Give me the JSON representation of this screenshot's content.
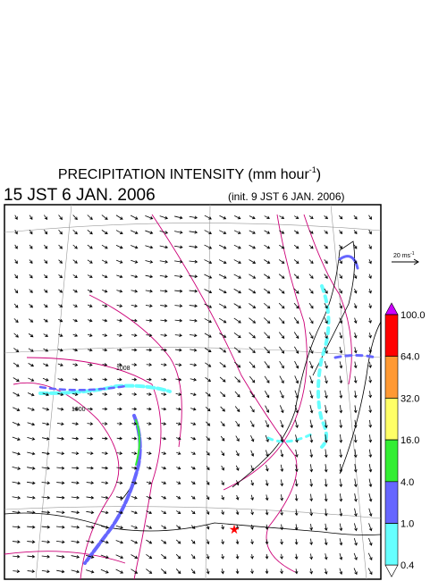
{
  "title": {
    "text": "PRECIPITATION INTENSITY (mm hour",
    "superscript": "-1",
    "close": ")"
  },
  "valid_time": "15 JST 6 JAN. 2006",
  "init_time": "(init. 9 JST 6 JAN. 2006)",
  "vector_scale": {
    "text": "20 ms",
    "superscript": "-1"
  },
  "colorbar": {
    "levels": [
      {
        "value": 100,
        "label": "100.0"
      },
      {
        "value": 64,
        "label": "64.0"
      },
      {
        "value": 32,
        "label": "32.0"
      },
      {
        "value": 16,
        "label": "16.0"
      },
      {
        "value": 4,
        "label": "4.0"
      },
      {
        "value": 1,
        "label": "1.0"
      },
      {
        "value": 0.4,
        "label": "0.4"
      }
    ],
    "colors": [
      "#ff0000",
      "#ff9933",
      "#ffff66",
      "#33ee33",
      "#6666ff",
      "#66ffff"
    ],
    "over_color": "#cc00ff",
    "under_color": "#ffffff"
  },
  "contour_labels": [
    "1008",
    "1000"
  ]
}
